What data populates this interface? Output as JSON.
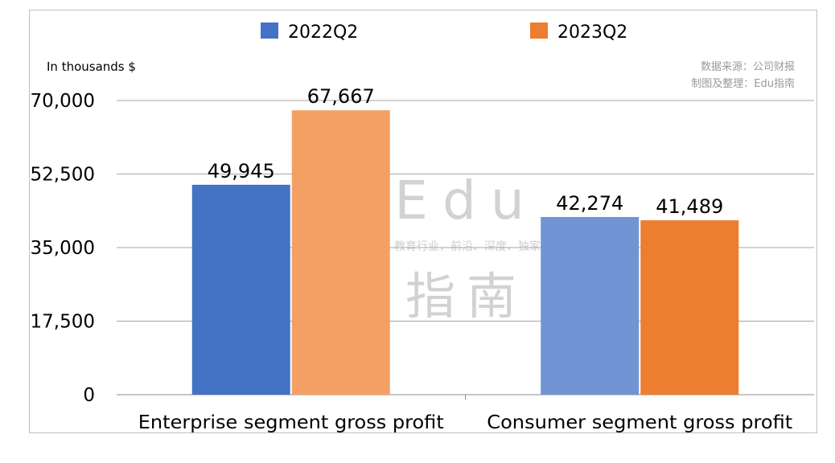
{
  "chart_data": {
    "type": "bar",
    "categories": [
      "Enterprise segment gross profit",
      "Consumer segment gross profit"
    ],
    "series": [
      {
        "name": "2022Q2",
        "values": [
          49945,
          42274
        ],
        "value_labels": [
          "49,945",
          "42,274"
        ]
      },
      {
        "name": "2023Q2",
        "values": [
          67667,
          41489
        ],
        "value_labels": [
          "67,667",
          "41,489"
        ]
      }
    ],
    "ylabel": "In thousands $",
    "ylim": [
      0,
      70000
    ],
    "yticks": [
      0,
      17500,
      35000,
      52500,
      70000
    ],
    "ytick_labels": [
      "0",
      "17,500",
      "35,000",
      "52,500",
      "70,000"
    ],
    "grid": true,
    "legend_position": "top",
    "bar_colors": [
      [
        "#4472c4",
        "#f4a064"
      ],
      [
        "#7094d4",
        "#ed7d31"
      ]
    ],
    "source_lines": [
      "数据来源：公司财报",
      "制图及整理：Edu指南"
    ],
    "watermark": {
      "top": "Edu",
      "tagline": "教育行业，前沿、深度、独家",
      "bottom": "指南"
    }
  }
}
